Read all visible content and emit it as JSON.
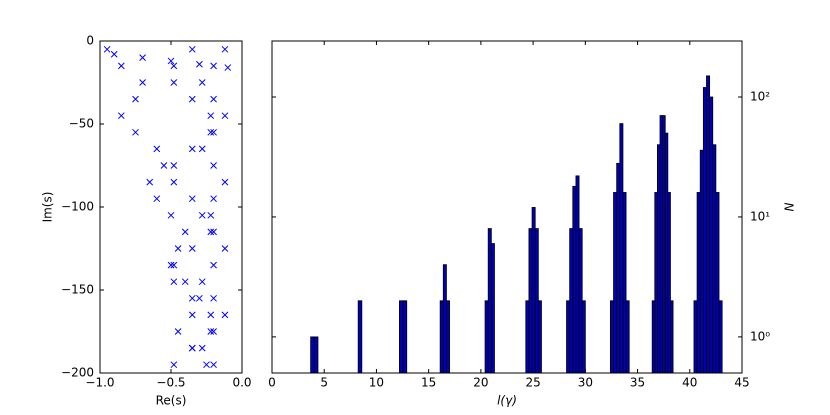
{
  "chart_data": [
    {
      "type": "scatter",
      "xlabel": "Re(s)",
      "ylabel": "Im(s)",
      "marker": "x",
      "color": "#0000ff",
      "xlim": [
        -1,
        0
      ],
      "xticks": [
        {
          "value": -1,
          "label": "−1.0"
        },
        {
          "value": -0.5,
          "label": "−0.5"
        },
        {
          "value": 0,
          "label": "0.0"
        }
      ],
      "ylim": [
        -200,
        0
      ],
      "yticks": [
        0,
        {
          "value": -50,
          "label": "−50"
        },
        {
          "value": -100,
          "label": "−100"
        },
        {
          "value": -150,
          "label": "−150"
        },
        {
          "value": -200,
          "label": "−200"
        }
      ],
      "x": [
        -0.12,
        -0.2,
        -0.28,
        -0.2,
        -0.12,
        -0.2,
        -0.28,
        -0.2,
        -0.12,
        -0.2,
        -0.28,
        -0.2,
        -0.12,
        -0.2,
        -0.28,
        -0.2,
        -0.12,
        -0.2,
        -0.28,
        -0.2,
        -0.35,
        -0.48,
        -0.48,
        -0.35,
        -0.22,
        -0.22,
        -0.35,
        -0.48,
        -0.48,
        -0.35,
        -0.22,
        -0.22,
        -0.35,
        -0.48,
        -0.48,
        -0.35,
        -0.22,
        -0.22,
        -0.35,
        -0.48,
        -0.95,
        -0.85,
        -0.7,
        -0.75,
        -0.85,
        -0.75,
        -0.6,
        -0.55,
        -0.65,
        -0.6,
        -0.5,
        -0.4,
        -0.45,
        -0.5,
        -0.4,
        -0.3,
        -0.35,
        -0.45,
        -0.35,
        -0.25,
        -0.9,
        -0.7,
        -0.5,
        -0.3,
        -0.1
      ],
      "y": [
        -5,
        -15,
        -25,
        -35,
        -45,
        -55,
        -65,
        -75,
        -85,
        -95,
        -105,
        -115,
        -125,
        -135,
        -145,
        -155,
        -165,
        -175,
        -185,
        -195,
        -5,
        -15,
        -25,
        -35,
        -45,
        -55,
        -65,
        -75,
        -85,
        -95,
        -105,
        -115,
        -125,
        -135,
        -145,
        -155,
        -165,
        -175,
        -185,
        -195,
        -5,
        -15,
        -25,
        -35,
        -45,
        -55,
        -65,
        -75,
        -85,
        -95,
        -105,
        -115,
        -125,
        -135,
        -145,
        -155,
        -165,
        -175,
        -185,
        -195,
        -8,
        -10,
        -12,
        -14,
        -16
      ]
    },
    {
      "type": "histogram",
      "xlabel": "l(γ)",
      "ylabel": "N",
      "yscale": "log",
      "yaxis_side": "right",
      "color": "#0000b4",
      "xlim": [
        0,
        45
      ],
      "xticks": [
        0,
        5,
        10,
        15,
        20,
        25,
        30,
        35,
        40,
        45
      ],
      "ylim": [
        0.5,
        293
      ],
      "yticks": [
        {
          "value": 1,
          "label": "10⁰"
        },
        {
          "value": 10,
          "label": "10¹"
        },
        {
          "value": 100,
          "label": "10²"
        }
      ],
      "bins": [
        3.7,
        4.05,
        4.4,
        8.25,
        8.6,
        12.2,
        12.55,
        12.9,
        16.1,
        16.4,
        16.7,
        17.0,
        20.4,
        20.7,
        21.0,
        21.3,
        24.3,
        24.6,
        24.9,
        25.2,
        25.5,
        25.8,
        28.2,
        28.5,
        28.8,
        29.1,
        29.4,
        29.7,
        30.0,
        32.4,
        32.7,
        33.0,
        33.3,
        33.6,
        33.9,
        34.2,
        36.4,
        36.65,
        36.9,
        37.15,
        37.4,
        37.65,
        37.9,
        38.15,
        38.4,
        40.4,
        40.7,
        41.0,
        41.3,
        41.6,
        41.9,
        42.2,
        42.5,
        42.8,
        43.1
      ],
      "values": [
        1,
        1,
        0,
        2,
        0,
        2,
        2,
        0,
        2,
        4,
        2,
        0,
        2,
        8,
        6,
        0,
        2,
        8,
        12,
        8,
        2,
        0,
        2,
        8,
        18,
        22,
        8,
        2,
        0,
        2,
        16,
        28,
        60,
        16,
        2,
        0,
        2,
        16,
        40,
        70,
        70,
        50,
        16,
        2,
        0,
        2,
        16,
        36,
        120,
        150,
        100,
        40,
        16,
        2
      ]
    }
  ]
}
